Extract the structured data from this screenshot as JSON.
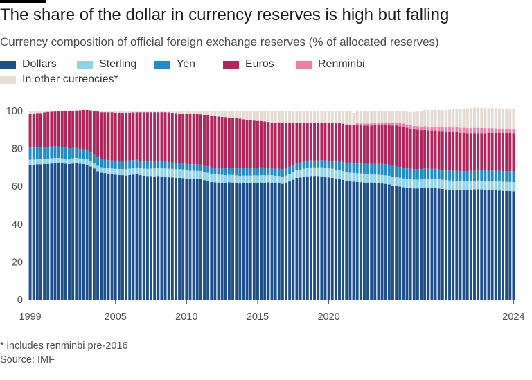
{
  "title": "The share of the dollar in currency reserves is high but falling",
  "subtitle": "Currency composition of official foreign exchange reserves (% of allocated reserves)",
  "footnote": "* includes renminbi pre-2016",
  "source": "Source: IMF",
  "legend": [
    {
      "label": "Dollars",
      "color": "#1f4e8c"
    },
    {
      "label": "Sterling",
      "color": "#8fd3e8"
    },
    {
      "label": "Yen",
      "color": "#1e8dcc"
    },
    {
      "label": "Euros",
      "color": "#b2245a"
    },
    {
      "label": "Renminbi",
      "color": "#f07da5"
    },
    {
      "label": "In other currencies*",
      "color": "#e3dbd2"
    }
  ],
  "chart_data": {
    "type": "bar",
    "stacked": true,
    "frequency": "quarterly",
    "start": "1999 Q1",
    "end": "2024 Q1",
    "ylim": [
      0,
      100
    ],
    "y_ticks": [
      "0",
      "20",
      "40",
      "60",
      "80",
      "100"
    ],
    "x_ticks": [
      "1999",
      "2005",
      "2010",
      "2015",
      "2020",
      "2024"
    ],
    "legend_position": "top",
    "grid": false,
    "series": [
      {
        "name": "Dollars",
        "color": "#1f4e8c",
        "values": [
          71.2,
          71.4,
          71.7,
          71.7,
          71.8,
          71.9,
          72.1,
          72.3,
          72.4,
          72.2,
          72.0,
          71.8,
          72.1,
          72.3,
          72.0,
          71.8,
          71.5,
          70.5,
          69.5,
          68.0,
          67.2,
          67.0,
          66.6,
          66.5,
          66.2,
          66.0,
          65.9,
          65.7,
          66.0,
          66.2,
          66.4,
          65.9,
          65.6,
          65.4,
          65.4,
          65.3,
          65.5,
          65.3,
          65.0,
          64.8,
          64.7,
          64.5,
          64.5,
          64.3,
          64.0,
          63.8,
          63.8,
          63.9,
          64.0,
          63.3,
          63.0,
          62.3,
          62.1,
          62.0,
          61.9,
          61.8,
          62.1,
          62.0,
          61.8,
          61.5,
          61.7,
          61.8,
          61.8,
          61.9,
          61.9,
          62.0,
          62.0,
          62.1,
          62.0,
          61.7,
          61.6,
          61.3,
          61.7,
          62.6,
          63.5,
          64.5,
          64.7,
          65.0,
          65.3,
          65.5,
          65.5,
          65.4,
          65.3,
          65.0,
          64.7,
          64.5,
          64.0,
          63.8,
          63.4,
          63.0,
          62.7,
          62.5,
          62.3,
          62.2,
          62.0,
          61.9,
          61.8,
          61.7,
          61.6,
          61.5,
          61.3,
          61.0,
          60.5,
          60.2,
          59.9,
          59.5,
          59.2,
          59.0,
          58.9,
          58.9,
          59.0,
          59.2,
          59.2,
          59.1,
          59.0,
          58.8,
          58.6,
          58.4,
          58.3,
          58.2,
          58.1,
          58.0,
          58.0,
          58.0,
          58.2,
          58.4,
          58.5,
          58.4,
          58.3,
          58.2,
          58.0,
          57.9,
          57.8,
          57.6,
          57.6,
          57.5,
          57.4
        ]
      },
      {
        "name": "Sterling",
        "color": "#8fd3e8",
        "values": [
          2.9,
          2.8,
          2.8,
          2.7,
          2.8,
          2.8,
          2.8,
          2.8,
          2.7,
          2.7,
          2.7,
          2.7,
          2.8,
          2.8,
          2.8,
          2.8,
          2.8,
          2.9,
          2.9,
          2.9,
          2.9,
          2.9,
          3.0,
          3.0,
          3.1,
          3.2,
          3.3,
          3.4,
          3.4,
          3.5,
          3.6,
          3.7,
          3.8,
          3.9,
          4.0,
          4.2,
          4.4,
          4.5,
          4.5,
          4.6,
          4.6,
          4.7,
          4.7,
          4.7,
          4.6,
          4.5,
          4.5,
          4.3,
          4.2,
          4.2,
          4.2,
          4.2,
          4.2,
          4.2,
          4.2,
          4.1,
          4.0,
          4.0,
          4.0,
          4.0,
          4.0,
          3.9,
          3.9,
          3.9,
          3.9,
          3.9,
          3.9,
          3.9,
          3.9,
          3.9,
          3.9,
          3.9,
          4.0,
          4.0,
          4.1,
          4.2,
          4.2,
          4.3,
          4.4,
          4.5,
          4.6,
          4.7,
          4.8,
          4.8,
          4.8,
          4.9,
          4.8,
          4.7,
          4.6,
          4.5,
          4.5,
          4.6,
          4.6,
          4.6,
          4.6,
          4.6,
          4.5,
          4.5,
          4.5,
          4.5,
          4.5,
          4.6,
          4.6,
          4.7,
          4.7,
          4.7,
          4.7,
          4.7,
          4.7,
          4.7,
          4.7,
          4.8,
          4.8,
          4.8,
          4.9,
          4.9,
          4.9,
          4.9,
          4.8,
          4.8,
          4.8,
          4.8,
          4.8,
          4.7,
          4.6,
          4.6,
          4.6,
          4.6,
          4.7,
          4.7,
          4.8,
          4.8,
          4.8,
          4.8,
          4.8,
          4.8,
          4.8
        ]
      },
      {
        "name": "Yen",
        "color": "#1e8dcc",
        "values": [
          6.4,
          6.3,
          6.3,
          6.2,
          6.1,
          6.1,
          6.1,
          6.1,
          6.0,
          5.9,
          5.8,
          5.6,
          5.4,
          5.2,
          5.1,
          5.0,
          4.8,
          4.8,
          4.6,
          4.5,
          4.4,
          4.3,
          4.3,
          4.2,
          4.3,
          4.4,
          4.4,
          4.4,
          4.3,
          4.2,
          4.1,
          4.0,
          3.9,
          3.8,
          3.8,
          3.8,
          3.7,
          3.6,
          3.5,
          3.4,
          3.4,
          3.3,
          3.2,
          3.2,
          3.3,
          3.4,
          3.4,
          3.5,
          3.3,
          3.3,
          3.4,
          3.5,
          3.6,
          3.6,
          3.7,
          3.8,
          3.7,
          3.8,
          3.9,
          4.0,
          4.0,
          3.9,
          3.9,
          3.9,
          4.1,
          4.2,
          4.0,
          3.9,
          3.8,
          3.8,
          3.9,
          4.0,
          4.0,
          3.9,
          3.8,
          3.7,
          3.8,
          3.8,
          3.8,
          3.7,
          3.7,
          3.7,
          3.8,
          3.9,
          4.1,
          4.2,
          4.4,
          4.6,
          4.8,
          4.9,
          5.0,
          5.1,
          5.2,
          5.3,
          5.4,
          5.5,
          5.6,
          5.7,
          5.8,
          5.9,
          5.9,
          5.8,
          5.8,
          5.8,
          5.7,
          5.7,
          5.6,
          5.6,
          5.5,
          5.5,
          5.5,
          5.5,
          5.4,
          5.4,
          5.4,
          5.3,
          5.3,
          5.3,
          5.3,
          5.3,
          5.3,
          5.3,
          5.3,
          5.3,
          5.4,
          5.4,
          5.4,
          5.5,
          5.5,
          5.6,
          5.6,
          5.6,
          5.6,
          5.7,
          5.7,
          5.7,
          5.7
        ]
      },
      {
        "name": "Euros",
        "color": "#b2245a",
        "values": [
          17.9,
          18.0,
          18.0,
          18.2,
          18.4,
          18.6,
          18.5,
          18.4,
          18.6,
          18.9,
          19.2,
          19.6,
          19.7,
          19.8,
          20.3,
          20.8,
          21.3,
          22.0,
          23.0,
          24.2,
          24.7,
          25.0,
          25.3,
          25.5,
          25.4,
          25.4,
          25.3,
          25.5,
          25.3,
          25.2,
          25.1,
          25.6,
          25.9,
          26.1,
          26.0,
          25.9,
          25.6,
          25.8,
          26.2,
          26.3,
          26.2,
          26.3,
          26.2,
          26.3,
          26.7,
          26.9,
          26.8,
          26.7,
          26.6,
          27.0,
          27.2,
          27.5,
          27.4,
          27.1,
          26.9,
          26.9,
          26.6,
          26.4,
          26.3,
          26.3,
          25.8,
          25.7,
          25.4,
          25.1,
          24.7,
          24.4,
          24.4,
          24.2,
          24.1,
          24.3,
          24.5,
          24.6,
          24.1,
          23.3,
          22.3,
          21.2,
          20.8,
          20.5,
          20.2,
          19.9,
          19.8,
          19.8,
          19.8,
          19.9,
          20.0,
          20.0,
          20.2,
          20.3,
          20.4,
          20.4,
          20.3,
          20.2,
          20.3,
          20.2,
          20.2,
          20.2,
          20.3,
          20.4,
          20.4,
          20.5,
          20.6,
          20.9,
          21.3,
          21.5,
          21.5,
          21.6,
          21.5,
          21.3,
          21.0,
          20.8,
          20.5,
          20.3,
          20.2,
          20.2,
          20.2,
          20.3,
          20.4,
          20.4,
          20.5,
          20.5,
          20.5,
          20.3,
          20.2,
          20.1,
          19.9,
          19.8,
          19.7,
          19.7,
          19.7,
          19.8,
          19.9,
          20.0,
          20.1,
          20.2,
          20.2,
          20.3,
          20.3
        ]
      },
      {
        "name": "Renminbi",
        "color": "#f07da5",
        "values": [
          0,
          0,
          0,
          0,
          0,
          0,
          0,
          0,
          0,
          0,
          0,
          0,
          0,
          0,
          0,
          0,
          0,
          0,
          0,
          0,
          0,
          0,
          0,
          0,
          0,
          0,
          0,
          0,
          0,
          0,
          0,
          0,
          0,
          0,
          0,
          0,
          0,
          0,
          0,
          0,
          0,
          0,
          0,
          0,
          0,
          0,
          0,
          0,
          0,
          0,
          0,
          0,
          0,
          0,
          0,
          0,
          0,
          0,
          0,
          0,
          0,
          0,
          0,
          0,
          0,
          0,
          0,
          0,
          0,
          0,
          0,
          0,
          0,
          0,
          0,
          0,
          0,
          0,
          0,
          0,
          0,
          0,
          0,
          0,
          0,
          0,
          0,
          0,
          0,
          0,
          0,
          0,
          1.1,
          1.1,
          1.1,
          1.1,
          1.1,
          1.1,
          1.1,
          1.2,
          1.2,
          1.3,
          1.4,
          1.5,
          1.6,
          1.7,
          1.8,
          1.8,
          1.9,
          1.9,
          1.9,
          2.0,
          2.0,
          2.0,
          2.1,
          2.1,
          2.1,
          2.2,
          2.3,
          2.4,
          2.5,
          2.6,
          2.7,
          2.7,
          2.7,
          2.8,
          2.8,
          2.7,
          2.6,
          2.5,
          2.5,
          2.4,
          2.3,
          2.3,
          2.3,
          2.2,
          2.2,
          2.2,
          2.2
        ]
      },
      {
        "name": "In other currencies*",
        "color": "#e3dbd2",
        "values": [
          1.6,
          1.5,
          1.2,
          1.2,
          0.9,
          0.6,
          0.5,
          0.4,
          0.3,
          0.3,
          0.3,
          0.3,
          0.0,
          -0.1,
          -0.2,
          -0.4,
          -0.4,
          -0.2,
          0.0,
          0.4,
          0.8,
          0.8,
          0.8,
          0.8,
          1.0,
          1.0,
          1.1,
          1.0,
          1.0,
          0.9,
          0.8,
          0.8,
          0.8,
          0.8,
          0.8,
          0.8,
          0.8,
          0.8,
          0.8,
          0.9,
          1.1,
          1.2,
          1.4,
          1.5,
          1.4,
          1.4,
          1.5,
          1.6,
          1.9,
          2.2,
          2.2,
          2.5,
          2.7,
          3.1,
          3.3,
          3.4,
          3.6,
          3.8,
          4.0,
          4.2,
          4.5,
          4.7,
          5.0,
          5.2,
          5.4,
          5.5,
          5.7,
          5.9,
          6.2,
          6.3,
          6.1,
          6.2,
          6.2,
          6.2,
          6.3,
          6.4,
          6.5,
          6.4,
          6.3,
          6.4,
          6.4,
          6.4,
          6.3,
          6.4,
          6.4,
          6.4,
          6.6,
          6.6,
          6.8,
          7.2,
          7.5,
          6.5,
          6.5,
          6.6,
          6.7,
          6.7,
          6.7,
          6.6,
          6.5,
          6.3,
          6.3,
          6.3,
          6.3,
          6.3,
          6.4,
          6.5,
          6.7,
          6.9,
          7.4,
          7.8,
          8.3,
          8.6,
          8.7,
          8.8,
          8.9,
          9.0,
          9.0,
          9.2,
          9.4,
          9.6,
          9.8,
          10.0,
          10.2,
          10.4,
          10.5,
          10.6,
          10.6,
          10.6,
          10.6,
          10.6,
          10.6,
          10.6,
          10.6,
          10.6,
          10.6,
          10.6,
          10.8
        ]
      }
    ]
  }
}
